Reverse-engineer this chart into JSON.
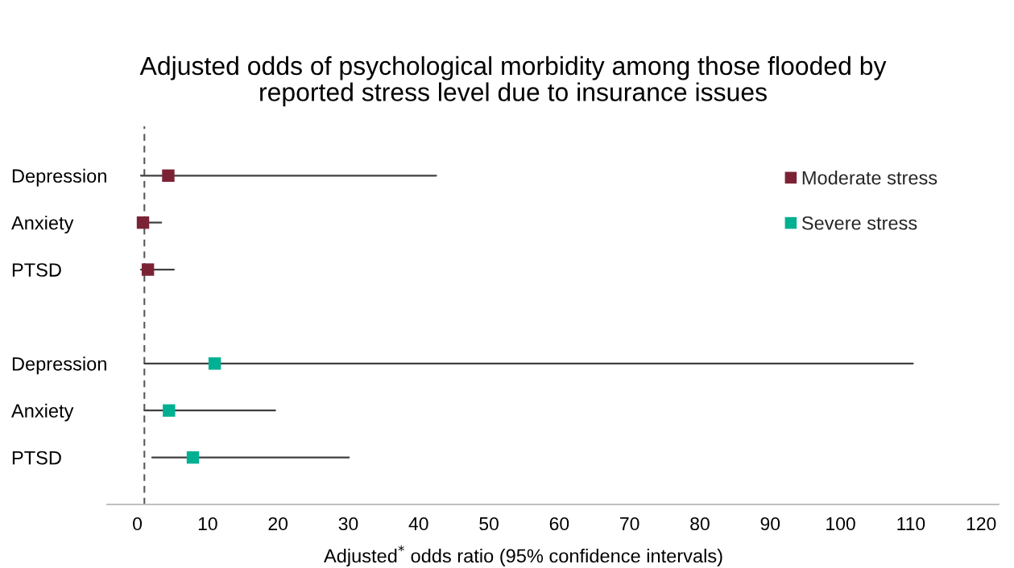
{
  "chart_data": {
    "type": "scatter",
    "orientation": "horizontal",
    "title": "Adjusted odds of psychological morbidity among those flooded by\nreported stress level due to insurance issues",
    "xlabel": "Adjusted$^{*}$ odds ratio (95% confidence intervals)",
    "categories": [
      "Depression",
      "Anxiety",
      "PTSD",
      null,
      "Depression",
      "Anxiety",
      "PTSD"
    ],
    "series": [
      {
        "name": "Moderate stress",
        "color": "#7b2335",
        "values": [
          4.4,
          0.8,
          1.5,
          null,
          null,
          null,
          null
        ],
        "errors": [
          [
            0.5,
            42.5
          ],
          [
            0.3,
            3.4
          ],
          [
            0.5,
            5.2
          ],
          null,
          null,
          null,
          null
        ]
      },
      {
        "name": "Severe stress",
        "color": "#00b092",
        "values": [
          null,
          null,
          null,
          null,
          11.0,
          4.5,
          7.9
        ],
        "errors": [
          null,
          null,
          null,
          null,
          [
            1.0,
            110.3
          ],
          [
            1.0,
            19.6
          ],
          [
            2.1,
            30.1
          ]
        ]
      }
    ],
    "xlim": [
      -4.3,
      122.5
    ],
    "xticks": [
      0,
      10,
      20,
      30,
      40,
      50,
      60,
      70,
      80,
      90,
      100,
      110,
      120
    ],
    "ref_lines": [
      {
        "axis": "x",
        "value": 1,
        "color": "#595959",
        "line_style": "dashed"
      }
    ],
    "marker": "square",
    "legend": "top right"
  }
}
